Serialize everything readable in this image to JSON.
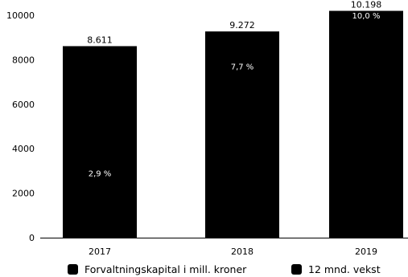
{
  "chart_data": {
    "type": "bar",
    "title": "",
    "xlabel": "",
    "ylabel": "",
    "categories": [
      "2017",
      "2018",
      "2019"
    ],
    "ylim": [
      0,
      10000
    ],
    "yticks": [
      "0",
      "2000",
      "4000",
      "6000",
      "8000",
      "10000"
    ],
    "ytick_values": [
      0,
      2000,
      4000,
      6000,
      8000,
      10000
    ],
    "series": [
      {
        "name": "Forvaltningskapital i mill. kroner",
        "values": [
          8611,
          9272,
          10198
        ],
        "data_labels": [
          "8.611",
          "9.272",
          "10.198"
        ],
        "color": "#000000"
      },
      {
        "name": "12 mnd. vekst",
        "values": [
          2.9,
          7.7,
          10.0
        ],
        "data_labels": [
          "2,9 %",
          "7,7 %",
          "10,0 %"
        ],
        "color": "#000000"
      }
    ],
    "grid": false,
    "legend_position": "bottom"
  }
}
